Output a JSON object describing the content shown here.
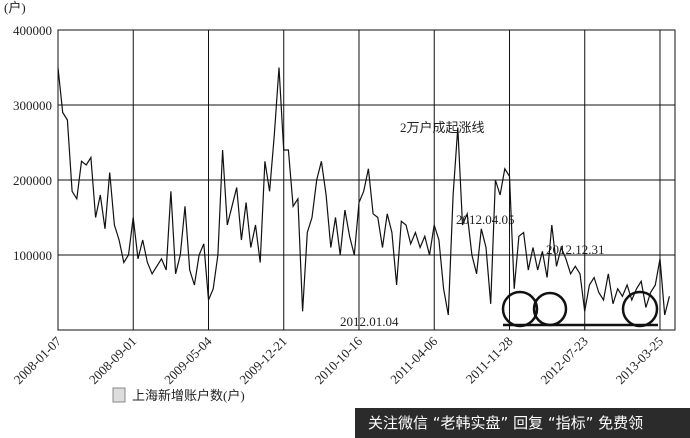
{
  "chart_data": {
    "type": "line",
    "unit_label": "(户)",
    "categories": [
      "2008-01-07",
      null,
      null,
      null,
      null,
      null,
      null,
      null,
      null,
      null,
      null,
      null,
      null,
      null,
      null,
      null,
      "2008-09-01",
      null,
      null,
      null,
      null,
      null,
      null,
      null,
      null,
      null,
      null,
      null,
      null,
      null,
      null,
      null,
      "2009-05-04",
      null,
      null,
      null,
      null,
      null,
      null,
      null,
      null,
      null,
      null,
      null,
      null,
      null,
      null,
      null,
      "2009-12-21",
      null,
      null,
      null,
      null,
      null,
      null,
      null,
      null,
      null,
      null,
      null,
      null,
      null,
      null,
      null,
      "2010-10-16",
      null,
      null,
      null,
      null,
      null,
      null,
      null,
      null,
      null,
      null,
      null,
      null,
      null,
      null,
      null,
      "2011-04-06",
      null,
      null,
      null,
      null,
      null,
      null,
      null,
      null,
      null,
      null,
      null,
      null,
      null,
      null,
      null,
      "2011-11-28",
      null,
      null,
      null,
      null,
      null,
      null,
      null,
      null,
      null,
      null,
      null,
      null,
      null,
      null,
      null,
      "2012-07-23",
      null,
      null,
      null,
      null,
      null,
      null,
      null,
      null,
      null,
      null,
      null,
      null,
      null,
      null,
      null,
      "2013-03-25",
      null,
      null
    ],
    "series": [
      {
        "name": "上海新增账户数(户)",
        "color": "#111111",
        "values": [
          350000,
          290000,
          280000,
          185000,
          175000,
          225000,
          220000,
          230000,
          150000,
          180000,
          135000,
          210000,
          140000,
          120000,
          90000,
          100000,
          150000,
          95000,
          120000,
          90000,
          75000,
          85000,
          95000,
          80000,
          185000,
          75000,
          100000,
          165000,
          80000,
          60000,
          100000,
          115000,
          40000,
          55000,
          100000,
          240000,
          140000,
          165000,
          190000,
          120000,
          170000,
          110000,
          140000,
          90000,
          225000,
          185000,
          260000,
          350000,
          240000,
          240000,
          165000,
          175000,
          25000,
          130000,
          150000,
          200000,
          225000,
          180000,
          110000,
          150000,
          100000,
          160000,
          125000,
          100000,
          170000,
          185000,
          215000,
          155000,
          150000,
          110000,
          155000,
          130000,
          60000,
          145000,
          140000,
          115000,
          130000,
          110000,
          125000,
          100000,
          140000,
          120000,
          55000,
          20000,
          180000,
          270000,
          140000,
          155000,
          100000,
          75000,
          135000,
          110000,
          35000,
          200000,
          180000,
          215000,
          205000,
          55000,
          125000,
          130000,
          80000,
          110000,
          80000,
          105000,
          70000,
          140000,
          85000,
          110000,
          95000,
          75000,
          85000,
          75000,
          25000,
          60000,
          70000,
          50000,
          40000,
          75000,
          35000,
          55000,
          45000,
          60000,
          40000,
          55000,
          65000,
          30000,
          50000,
          60000,
          95000,
          20000,
          45000
        ]
      }
    ],
    "ylim": [
      0,
      400000
    ],
    "yticks": [
      100000,
      200000,
      300000,
      400000
    ],
    "grid": true,
    "annotations": [
      "2万户成起涨线",
      "2012.04.05",
      "2012.12.31",
      "2012.01.04"
    ],
    "watermark": "关注微信 “老韩实盘” 回复 “指标” 免费领"
  }
}
